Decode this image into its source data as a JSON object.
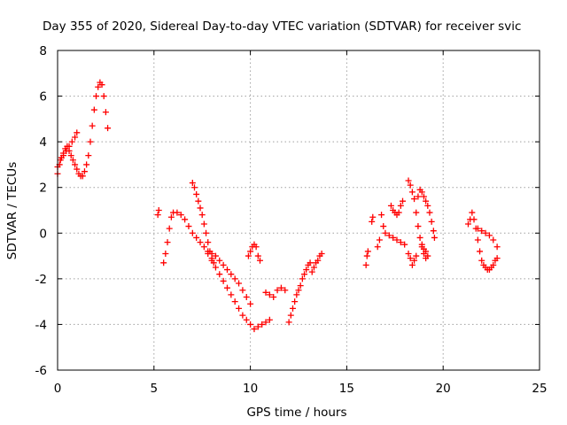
{
  "chart_data": {
    "type": "scatter",
    "title": "Day 355 of 2020, Sidereal Day-to-day VTEC variation (SDTVAR) for receiver svic",
    "xlabel": "GPS time / hours",
    "ylabel": "SDTVAR / TECUs",
    "xlim": [
      0,
      25
    ],
    "ylim": [
      -6,
      8
    ],
    "xticks": [
      0,
      5,
      10,
      15,
      20,
      25
    ],
    "yticks": [
      -6,
      -4,
      -2,
      0,
      2,
      4,
      6,
      8
    ],
    "xtick_labels": [
      "0",
      "5",
      "10",
      "15",
      "20",
      "25"
    ],
    "ytick_labels": [
      "-6",
      "-4",
      "-2",
      "0",
      "2",
      "4",
      "6",
      "8"
    ],
    "grid": true,
    "marker": "+",
    "color": "#ff0000",
    "segments": [
      [
        [
          0.0,
          2.6
        ],
        [
          0.1,
          3.0
        ],
        [
          0.2,
          3.3
        ],
        [
          0.3,
          3.5
        ],
        [
          0.4,
          3.7
        ],
        [
          0.5,
          3.8
        ],
        [
          0.6,
          3.6
        ],
        [
          0.7,
          3.4
        ],
        [
          0.8,
          3.2
        ],
        [
          0.9,
          3.0
        ],
        [
          1.0,
          2.8
        ],
        [
          1.1,
          2.6
        ],
        [
          1.2,
          2.5
        ],
        [
          1.3,
          2.5
        ],
        [
          1.4,
          2.7
        ],
        [
          1.5,
          3.0
        ],
        [
          1.6,
          3.4
        ],
        [
          1.7,
          4.0
        ],
        [
          1.8,
          4.7
        ],
        [
          1.9,
          5.4
        ],
        [
          2.0,
          6.0
        ],
        [
          2.1,
          6.4
        ],
        [
          2.2,
          6.6
        ],
        [
          2.3,
          6.5
        ],
        [
          2.4,
          6.0
        ],
        [
          2.5,
          5.3
        ],
        [
          2.6,
          4.6
        ]
      ],
      [
        [
          0.0,
          2.9
        ],
        [
          0.15,
          3.2
        ],
        [
          0.3,
          3.4
        ],
        [
          0.45,
          3.6
        ],
        [
          0.6,
          3.8
        ],
        [
          0.75,
          4.0
        ],
        [
          0.9,
          4.2
        ],
        [
          1.0,
          4.4
        ]
      ],
      [
        [
          5.2,
          0.8
        ],
        [
          5.25,
          1.0
        ]
      ],
      [
        [
          5.5,
          -1.3
        ],
        [
          5.6,
          -0.9
        ],
        [
          5.7,
          -0.4
        ],
        [
          5.8,
          0.2
        ],
        [
          5.9,
          0.7
        ],
        [
          6.0,
          0.9
        ],
        [
          6.2,
          0.9
        ],
        [
          6.4,
          0.8
        ],
        [
          6.6,
          0.6
        ],
        [
          6.8,
          0.3
        ],
        [
          7.0,
          0.0
        ],
        [
          7.2,
          -0.2
        ],
        [
          7.4,
          -0.4
        ],
        [
          7.6,
          -0.6
        ],
        [
          7.8,
          -0.9
        ],
        [
          8.0,
          -1.2
        ],
        [
          8.2,
          -1.5
        ],
        [
          8.4,
          -1.8
        ],
        [
          8.6,
          -2.1
        ],
        [
          8.8,
          -2.4
        ],
        [
          9.0,
          -2.7
        ],
        [
          9.2,
          -3.0
        ],
        [
          9.4,
          -3.3
        ],
        [
          9.6,
          -3.6
        ],
        [
          9.8,
          -3.8
        ],
        [
          10.0,
          -4.0
        ],
        [
          10.2,
          -4.2
        ],
        [
          10.4,
          -4.1
        ],
        [
          10.6,
          -4.0
        ],
        [
          10.8,
          -3.9
        ],
        [
          11.0,
          -3.8
        ]
      ],
      [
        [
          7.0,
          2.2
        ],
        [
          7.1,
          2.0
        ],
        [
          7.2,
          1.7
        ],
        [
          7.3,
          1.4
        ],
        [
          7.4,
          1.1
        ],
        [
          7.5,
          0.8
        ],
        [
          7.6,
          0.4
        ],
        [
          7.7,
          0.0
        ],
        [
          7.8,
          -0.4
        ],
        [
          7.9,
          -0.8
        ],
        [
          8.0,
          -1.1
        ],
        [
          8.1,
          -1.3
        ]
      ],
      [
        [
          7.8,
          -0.8
        ],
        [
          8.0,
          -0.9
        ],
        [
          8.2,
          -1.0
        ],
        [
          8.4,
          -1.2
        ],
        [
          8.6,
          -1.4
        ],
        [
          8.8,
          -1.6
        ],
        [
          9.0,
          -1.8
        ],
        [
          9.2,
          -2.0
        ],
        [
          9.4,
          -2.2
        ],
        [
          9.6,
          -2.5
        ],
        [
          9.8,
          -2.8
        ],
        [
          10.0,
          -3.1
        ]
      ],
      [
        [
          9.9,
          -1.0
        ],
        [
          10.0,
          -0.8
        ],
        [
          10.1,
          -0.6
        ],
        [
          10.2,
          -0.5
        ],
        [
          10.3,
          -0.6
        ],
        [
          10.4,
          -1.0
        ],
        [
          10.5,
          -1.2
        ]
      ],
      [
        [
          10.8,
          -2.6
        ],
        [
          11.0,
          -2.7
        ],
        [
          11.2,
          -2.8
        ],
        [
          11.4,
          -2.5
        ],
        [
          11.6,
          -2.4
        ],
        [
          11.8,
          -2.5
        ]
      ],
      [
        [
          12.0,
          -3.9
        ],
        [
          12.1,
          -3.6
        ],
        [
          12.2,
          -3.3
        ],
        [
          12.3,
          -3.0
        ],
        [
          12.4,
          -2.7
        ],
        [
          12.5,
          -2.5
        ],
        [
          12.6,
          -2.3
        ],
        [
          12.7,
          -2.0
        ],
        [
          12.8,
          -1.8
        ],
        [
          12.9,
          -1.6
        ],
        [
          13.0,
          -1.4
        ],
        [
          13.1,
          -1.3
        ]
      ],
      [
        [
          13.2,
          -1.7
        ],
        [
          13.3,
          -1.5
        ],
        [
          13.4,
          -1.3
        ],
        [
          13.5,
          -1.2
        ],
        [
          13.6,
          -1.0
        ],
        [
          13.7,
          -0.9
        ]
      ],
      [
        [
          16.0,
          -1.4
        ],
        [
          16.05,
          -1.0
        ],
        [
          16.1,
          -0.8
        ]
      ],
      [
        [
          16.3,
          0.5
        ],
        [
          16.35,
          0.7
        ]
      ],
      [
        [
          16.6,
          -0.6
        ],
        [
          16.7,
          -0.3
        ]
      ],
      [
        [
          16.8,
          0.8
        ],
        [
          16.9,
          0.3
        ],
        [
          17.0,
          0.0
        ],
        [
          17.2,
          -0.1
        ],
        [
          17.4,
          -0.2
        ],
        [
          17.6,
          -0.3
        ],
        [
          17.8,
          -0.4
        ],
        [
          18.0,
          -0.5
        ]
      ],
      [
        [
          17.3,
          1.2
        ],
        [
          17.4,
          1.0
        ],
        [
          17.5,
          0.9
        ],
        [
          17.6,
          0.8
        ],
        [
          17.7,
          0.9
        ],
        [
          17.8,
          1.2
        ],
        [
          17.9,
          1.4
        ]
      ],
      [
        [
          18.2,
          2.3
        ],
        [
          18.3,
          2.1
        ],
        [
          18.4,
          1.8
        ],
        [
          18.5,
          1.5
        ],
        [
          18.6,
          0.9
        ],
        [
          18.7,
          0.3
        ],
        [
          18.8,
          -0.2
        ],
        [
          18.9,
          -0.6
        ],
        [
          19.0,
          -0.9
        ],
        [
          19.1,
          -1.1
        ]
      ],
      [
        [
          18.2,
          -0.9
        ],
        [
          18.3,
          -1.1
        ],
        [
          18.4,
          -1.4
        ],
        [
          18.5,
          -1.2
        ],
        [
          18.6,
          -1.0
        ]
      ],
      [
        [
          18.7,
          1.6
        ],
        [
          18.8,
          1.9
        ],
        [
          18.9,
          1.8
        ],
        [
          19.0,
          1.6
        ],
        [
          19.1,
          1.4
        ],
        [
          19.2,
          1.2
        ],
        [
          19.3,
          0.9
        ],
        [
          19.4,
          0.5
        ],
        [
          19.5,
          0.1
        ],
        [
          19.55,
          -0.2
        ]
      ],
      [
        [
          18.9,
          -0.5
        ],
        [
          19.0,
          -0.7
        ],
        [
          19.1,
          -0.8
        ],
        [
          19.2,
          -1.0
        ]
      ],
      [
        [
          21.3,
          0.4
        ],
        [
          21.4,
          0.6
        ],
        [
          21.5,
          0.9
        ],
        [
          21.6,
          0.6
        ],
        [
          21.7,
          0.2
        ],
        [
          21.8,
          -0.3
        ],
        [
          21.9,
          -0.8
        ],
        [
          22.0,
          -1.2
        ],
        [
          22.1,
          -1.4
        ],
        [
          22.2,
          -1.5
        ],
        [
          22.3,
          -1.6
        ],
        [
          22.4,
          -1.6
        ],
        [
          22.5,
          -1.5
        ],
        [
          22.6,
          -1.4
        ],
        [
          22.7,
          -1.2
        ],
        [
          22.8,
          -1.1
        ]
      ],
      [
        [
          21.8,
          0.2
        ],
        [
          22.0,
          0.1
        ],
        [
          22.2,
          0.0
        ],
        [
          22.4,
          -0.1
        ],
        [
          22.6,
          -0.3
        ],
        [
          22.8,
          -0.6
        ]
      ]
    ]
  }
}
